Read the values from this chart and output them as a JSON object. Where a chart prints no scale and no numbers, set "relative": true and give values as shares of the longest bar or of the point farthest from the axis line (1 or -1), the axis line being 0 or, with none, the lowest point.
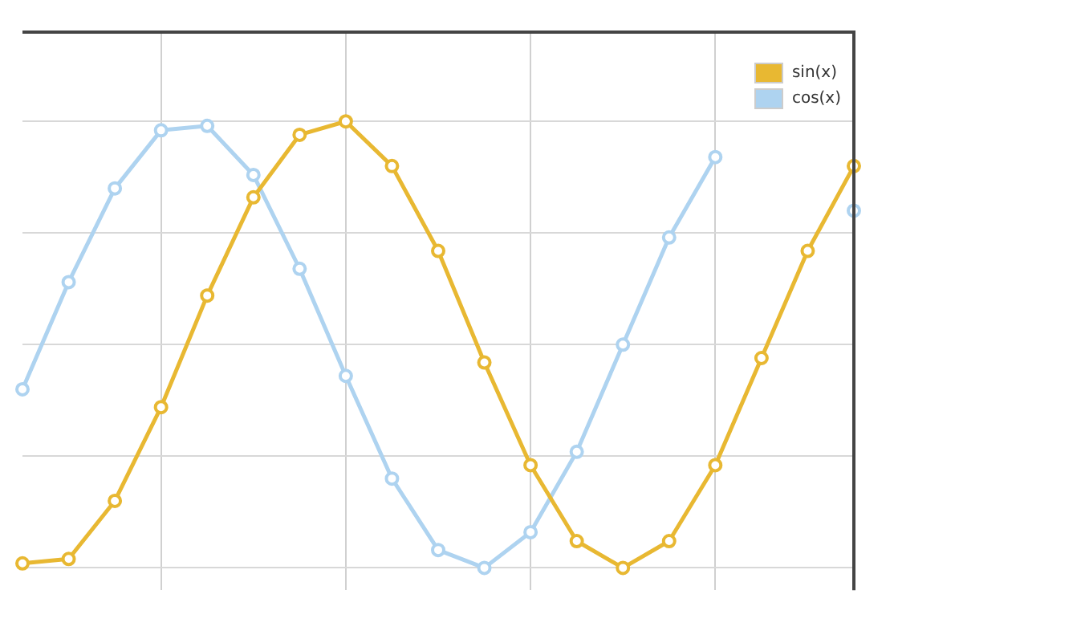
{
  "chart_data": {
    "type": "line",
    "relative": true,
    "grid": true,
    "legend": "top right",
    "marker": "circle",
    "line_style": "solid",
    "categories": [
      null,
      null,
      null,
      null,
      null,
      null,
      null,
      null,
      null,
      null,
      null,
      null,
      null,
      null,
      null,
      null,
      null,
      null,
      null
    ],
    "series": [
      {
        "name": "sin(x)",
        "color": "#e8b832",
        "values": [
          0.01,
          0.02,
          0.15,
          0.36,
          0.61,
          0.83,
          0.97,
          1.0,
          0.9,
          0.71,
          0.46,
          0.23,
          0.06,
          0,
          0.06,
          0.23,
          0.47,
          0.71,
          0.9
        ]
      },
      {
        "name": "cos(x)",
        "color": "#aed3f0",
        "values": [
          0.4,
          0.64,
          0.85,
          0.98,
          0.99,
          0.88,
          0.67,
          0.43,
          0.2,
          0.04,
          0,
          0.08,
          0.26,
          0.5,
          0.74,
          0.92,
          null,
          null,
          0.8
        ]
      }
    ]
  }
}
